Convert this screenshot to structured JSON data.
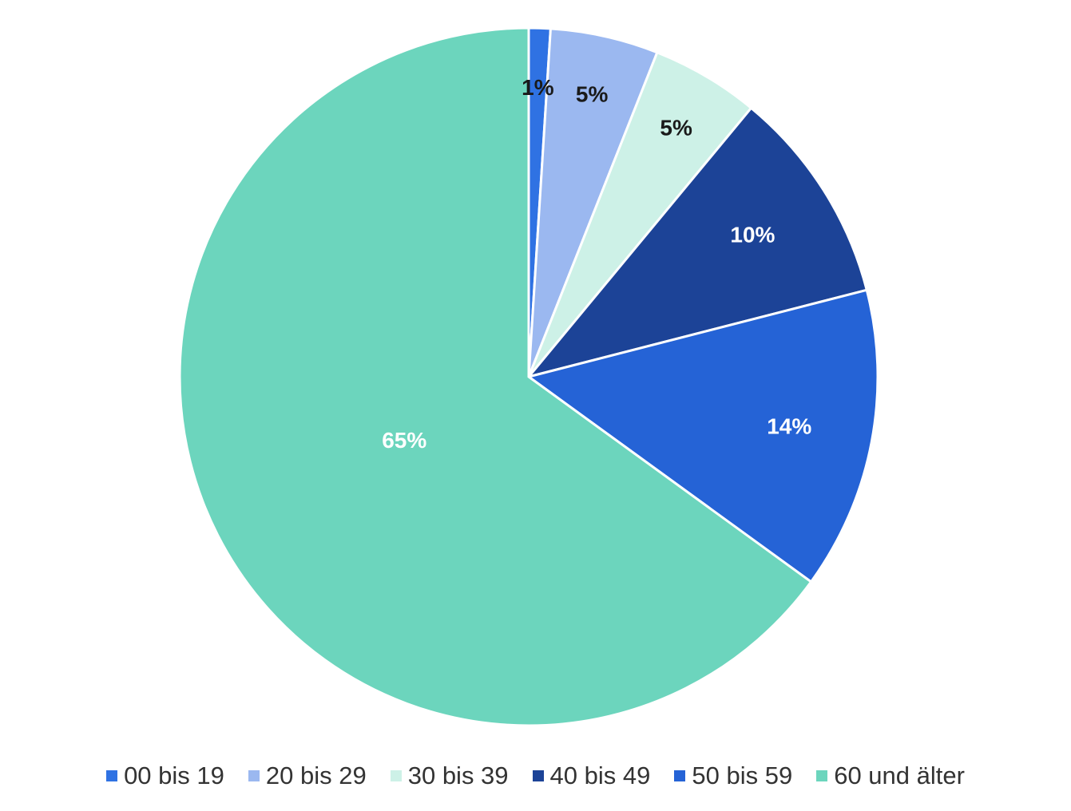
{
  "chart_data": {
    "type": "pie",
    "title": "",
    "categories": [
      "00 bis 19",
      "20 bis 29",
      "30 bis 39",
      "40 bis 49",
      "50 bis 59",
      "60 und älter"
    ],
    "values": [
      1,
      5,
      5,
      10,
      14,
      65
    ],
    "data_labels": [
      "1%",
      "5%",
      "5%",
      "10%",
      "14%",
      "65%"
    ],
    "colors": [
      "#2f72e3",
      "#9bb8f0",
      "#cdf1e7",
      "#1c4397",
      "#2563d6",
      "#6cd5bd"
    ],
    "label_colors": [
      "#1a1a1a",
      "#1a1a1a",
      "#1a1a1a",
      "#ffffff",
      "#ffffff",
      "#ffffff"
    ],
    "start_angle": "12 o'clock",
    "direction": "clockwise",
    "legend_position": "bottom"
  }
}
